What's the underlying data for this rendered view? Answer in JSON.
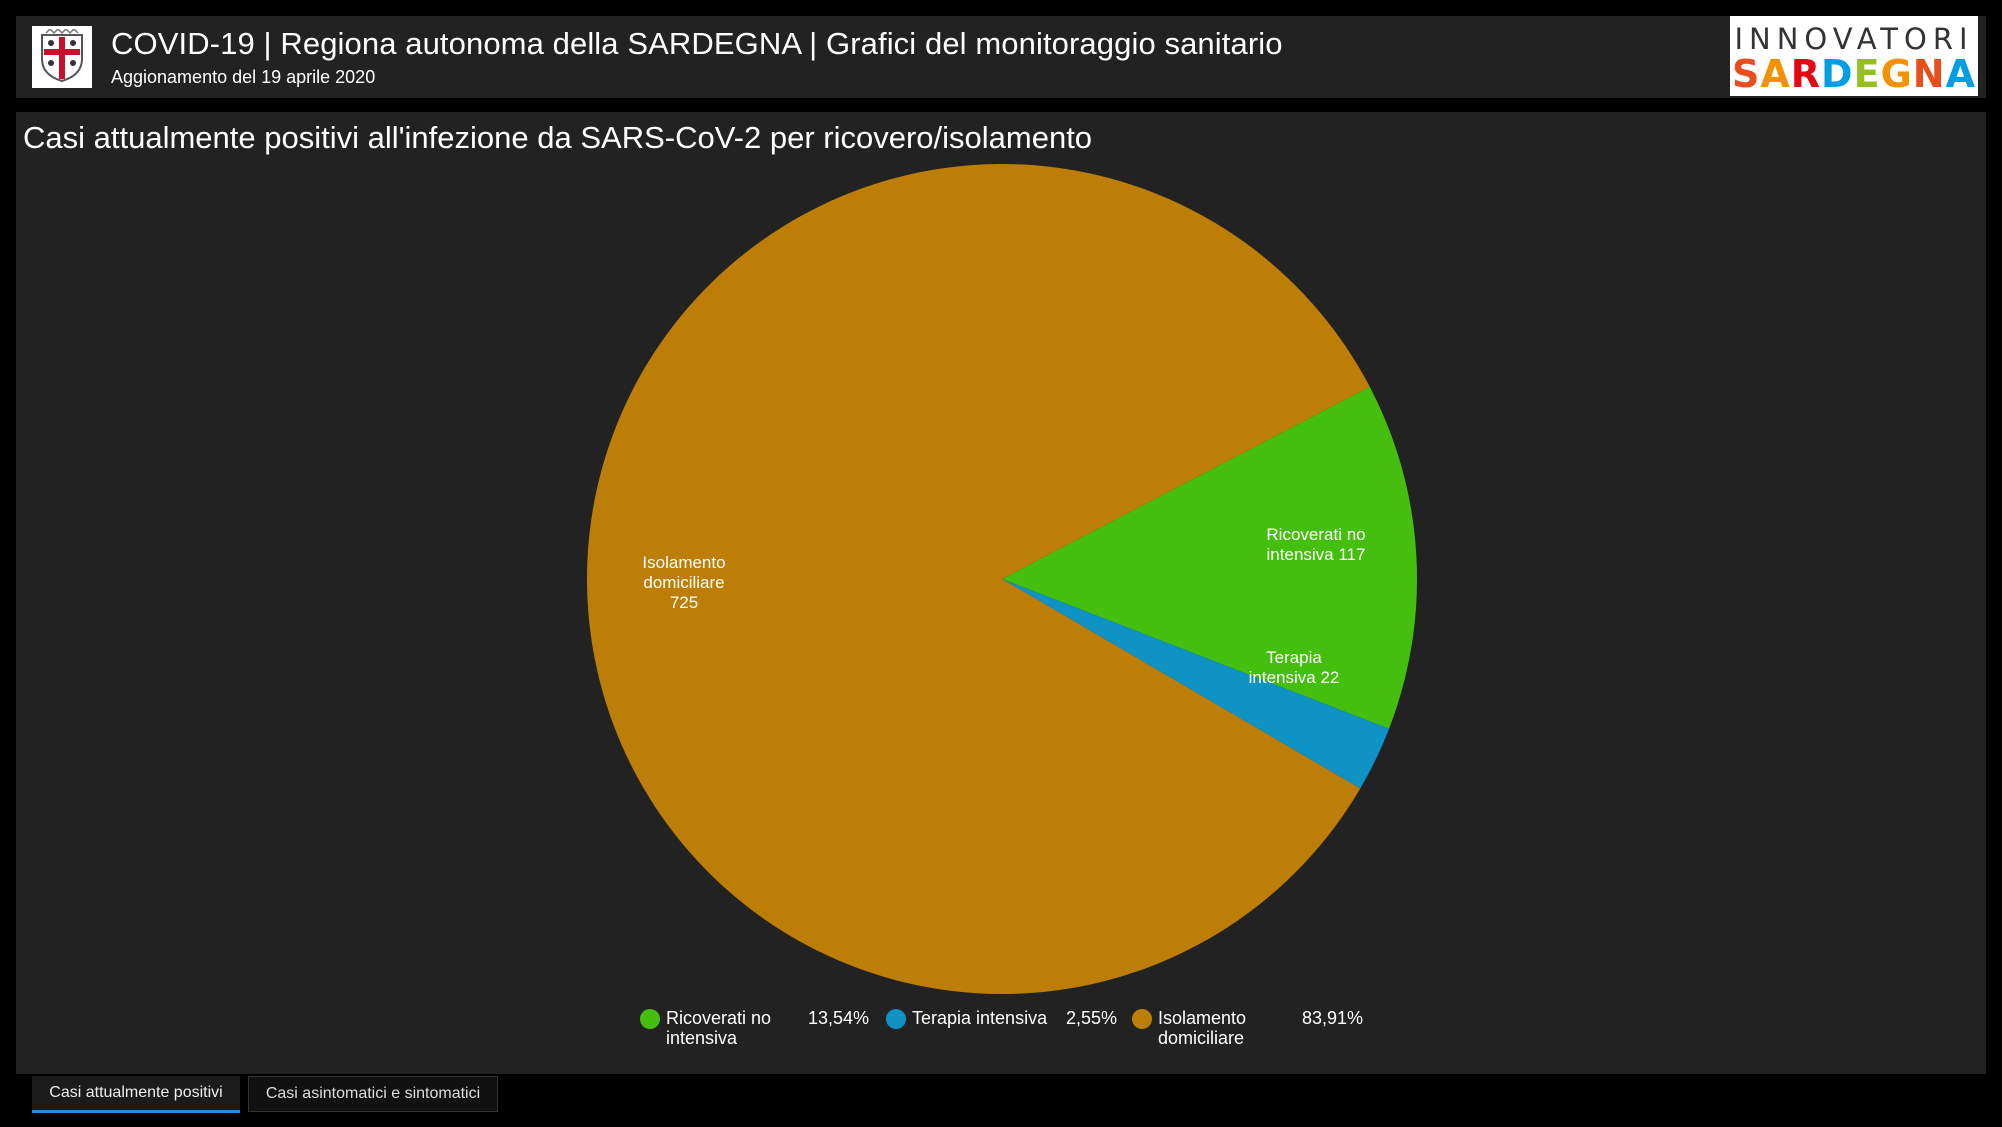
{
  "header": {
    "title": "COVID-19 | Regiona autonoma della SARDEGNA | Grafici del monitoraggio sanitario",
    "subtitle": "Aggionamento del 19 aprile 2020",
    "logo_line1": "INNOVATORI",
    "logo_line2": "SARDEGNA"
  },
  "panel": {
    "title": "Casi attualmente positivi all'infezione da SARS-CoV-2 per ricovero/isolamento"
  },
  "colors": {
    "green": "#44bf0d",
    "blue": "#0f93c4",
    "orange": "#bd7e07",
    "background": "#222222"
  },
  "chart_data": {
    "type": "pie",
    "title": "Casi attualmente positivi all'infezione da SARS-CoV-2 per ricovero/isolamento",
    "slices": [
      {
        "label_lines": [
          "Ricoverati no",
          "intensiva 117"
        ],
        "legend_label_lines": [
          "Ricoverati no",
          "intensiva"
        ],
        "value": 117,
        "percent": "13,54%",
        "color": "#44bf0d"
      },
      {
        "label_lines": [
          "Terapia",
          "intensiva 22"
        ],
        "legend_label_lines": [
          "Terapia intensiva"
        ],
        "value": 22,
        "percent": "2,55%",
        "color": "#0f93c4"
      },
      {
        "label_lines": [
          "Isolamento",
          "domiciliare",
          "725"
        ],
        "legend_label_lines": [
          "Isolamento",
          "domiciliare"
        ],
        "value": 725,
        "percent": "83,91%",
        "color": "#bd7e07"
      }
    ],
    "legend_position": "bottom"
  },
  "tabs": [
    {
      "label": "Casi attualmente positivi",
      "active": true
    },
    {
      "label": "Casi asintomatici e sintomatici",
      "active": false
    }
  ]
}
